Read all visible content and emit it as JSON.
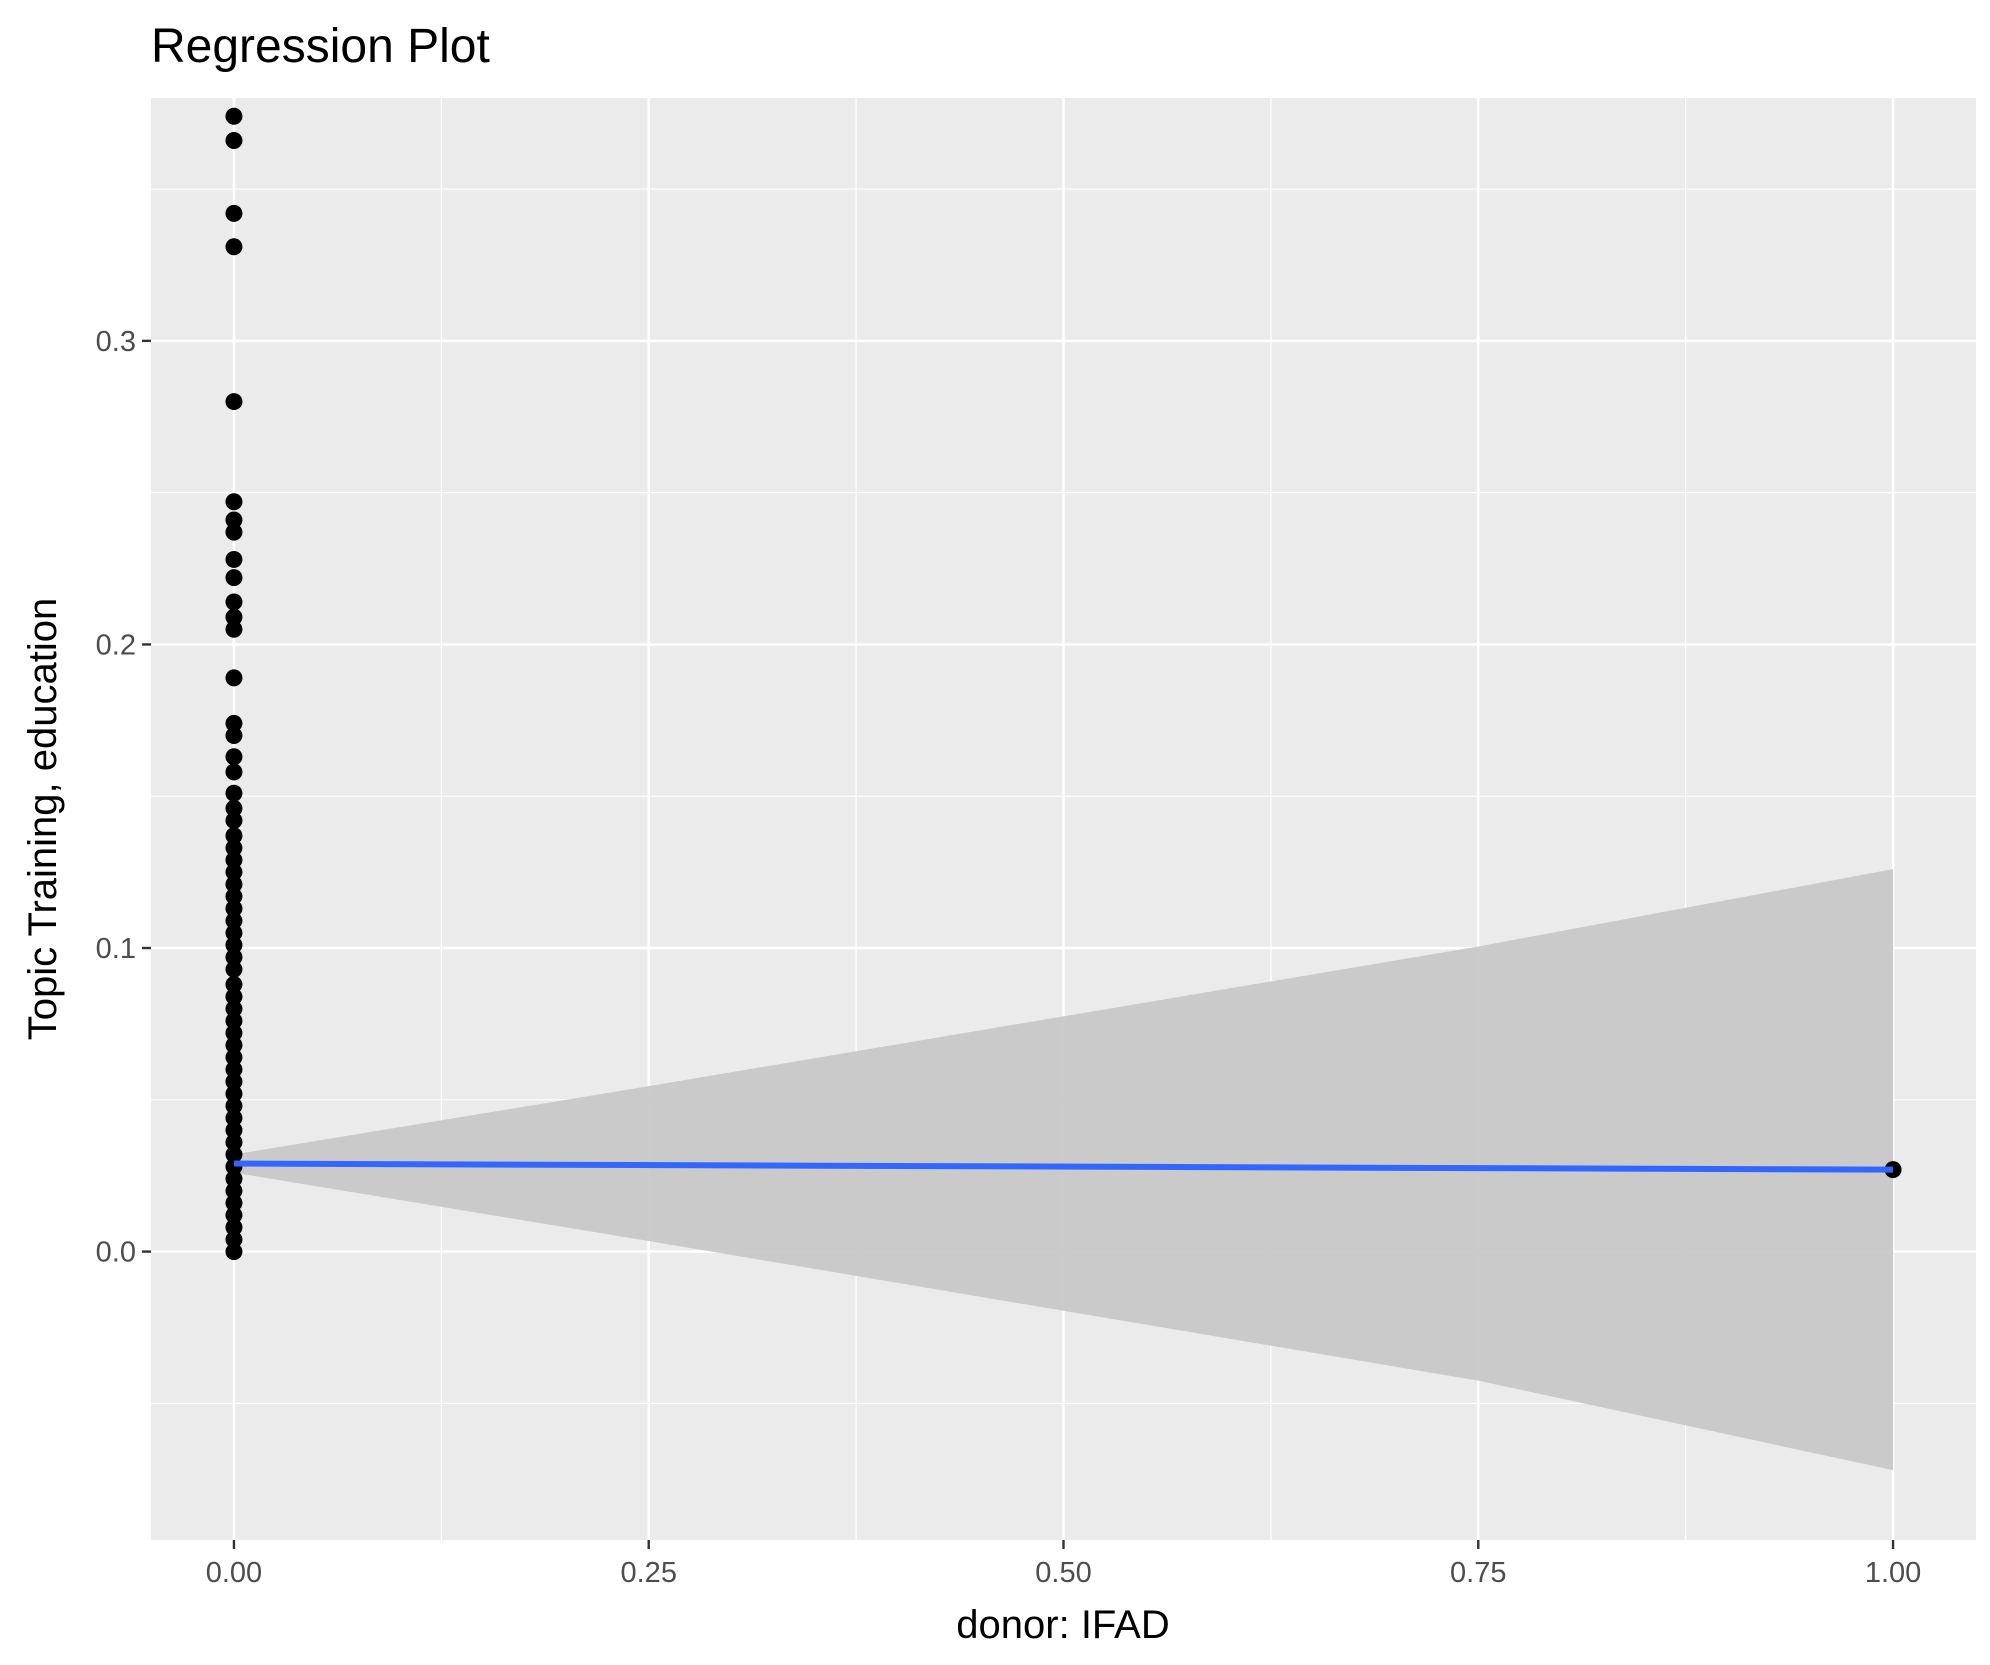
{
  "chart_data": {
    "type": "scatter",
    "title": "Regression Plot",
    "xlabel": "donor: IFAD",
    "ylabel": "Topic Training, education",
    "xlim": [
      -0.05,
      1.05
    ],
    "ylim": [
      -0.095,
      0.38
    ],
    "x_ticks": [
      0,
      0.25,
      0.5,
      0.75,
      1.0
    ],
    "x_tick_labels": [
      "0.00",
      "0.25",
      "0.50",
      "0.75",
      "1.00"
    ],
    "y_ticks": [
      0.0,
      0.1,
      0.2,
      0.3
    ],
    "y_tick_labels": [
      "0.0",
      "0.1",
      "0.2",
      "0.3"
    ],
    "grid": true,
    "legend": "none",
    "colors": {
      "panel": "#ebebeb",
      "grid_major": "#ffffff",
      "points": "#000000",
      "fit_line": "#3366ff",
      "ribbon": "#c8c8c8"
    },
    "points": [
      {
        "x": 0,
        "y": 0.374
      },
      {
        "x": 0,
        "y": 0.366
      },
      {
        "x": 0,
        "y": 0.342
      },
      {
        "x": 0,
        "y": 0.331
      },
      {
        "x": 0,
        "y": 0.28
      },
      {
        "x": 0,
        "y": 0.247
      },
      {
        "x": 0,
        "y": 0.241
      },
      {
        "x": 0,
        "y": 0.237
      },
      {
        "x": 0,
        "y": 0.228
      },
      {
        "x": 0,
        "y": 0.222
      },
      {
        "x": 0,
        "y": 0.214
      },
      {
        "x": 0,
        "y": 0.209
      },
      {
        "x": 0,
        "y": 0.205
      },
      {
        "x": 0,
        "y": 0.189
      },
      {
        "x": 0,
        "y": 0.174
      },
      {
        "x": 0,
        "y": 0.17
      },
      {
        "x": 0,
        "y": 0.163
      },
      {
        "x": 0,
        "y": 0.158
      },
      {
        "x": 0,
        "y": 0.151
      },
      {
        "x": 0,
        "y": 0.146
      },
      {
        "x": 0,
        "y": 0.142
      },
      {
        "x": 0,
        "y": 0.137
      },
      {
        "x": 0,
        "y": 0.133
      },
      {
        "x": 0,
        "y": 0.129
      },
      {
        "x": 0,
        "y": 0.125
      },
      {
        "x": 0,
        "y": 0.121
      },
      {
        "x": 0,
        "y": 0.117
      },
      {
        "x": 0,
        "y": 0.113
      },
      {
        "x": 0,
        "y": 0.109
      },
      {
        "x": 0,
        "y": 0.105
      },
      {
        "x": 0,
        "y": 0.101
      },
      {
        "x": 0,
        "y": 0.097
      },
      {
        "x": 0,
        "y": 0.093
      },
      {
        "x": 0,
        "y": 0.088
      },
      {
        "x": 0,
        "y": 0.084
      },
      {
        "x": 0,
        "y": 0.08
      },
      {
        "x": 0,
        "y": 0.076
      },
      {
        "x": 0,
        "y": 0.072
      },
      {
        "x": 0,
        "y": 0.068
      },
      {
        "x": 0,
        "y": 0.064
      },
      {
        "x": 0,
        "y": 0.06
      },
      {
        "x": 0,
        "y": 0.056
      },
      {
        "x": 0,
        "y": 0.052
      },
      {
        "x": 0,
        "y": 0.048
      },
      {
        "x": 0,
        "y": 0.044
      },
      {
        "x": 0,
        "y": 0.04
      },
      {
        "x": 0,
        "y": 0.036
      },
      {
        "x": 0,
        "y": 0.032
      },
      {
        "x": 0,
        "y": 0.028
      },
      {
        "x": 0,
        "y": 0.024
      },
      {
        "x": 0,
        "y": 0.02
      },
      {
        "x": 0,
        "y": 0.016
      },
      {
        "x": 0,
        "y": 0.012
      },
      {
        "x": 0,
        "y": 0.008
      },
      {
        "x": 0,
        "y": 0.004
      },
      {
        "x": 0,
        "y": 0.0
      },
      {
        "x": 1.0,
        "y": 0.027
      }
    ],
    "fit_line": {
      "x": [
        0,
        1.0
      ],
      "y": [
        0.029,
        0.027
      ]
    },
    "confidence_band": {
      "x": [
        0,
        0.25,
        0.5,
        0.75,
        1.0
      ],
      "lower": [
        0.026,
        0.0035,
        -0.0195,
        -0.0425,
        -0.072
      ],
      "upper": [
        0.032,
        0.0545,
        0.0775,
        0.1005,
        0.126
      ]
    }
  }
}
